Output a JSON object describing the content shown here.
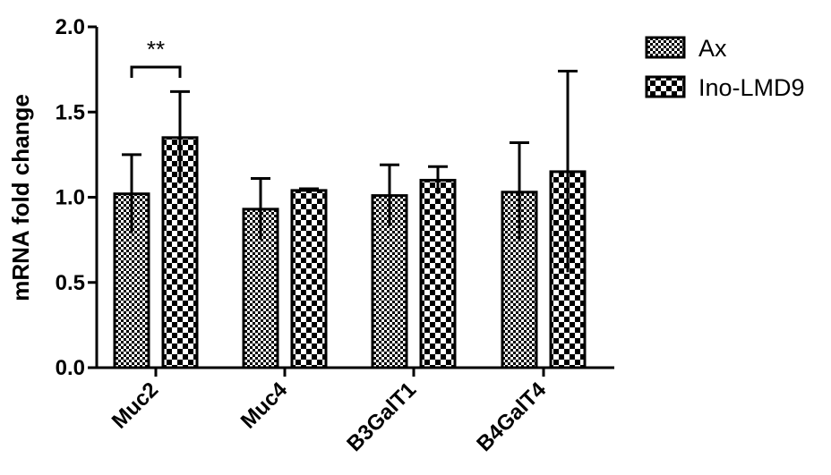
{
  "chart_data": {
    "type": "bar",
    "title": "",
    "xlabel": "",
    "ylabel": "mRNA fold change",
    "ylim": [
      0,
      2.0
    ],
    "yticks": [
      "0.0",
      "0.5",
      "1.0",
      "1.5",
      "2.0"
    ],
    "categories": [
      "Muc2",
      "Muc4",
      "B3GalT1",
      "B4GalT4"
    ],
    "series": [
      {
        "name": "Ax",
        "pattern": "fine-checker",
        "values": [
          1.02,
          0.93,
          1.01,
          1.03
        ],
        "errors": [
          0.23,
          0.18,
          0.18,
          0.29
        ]
      },
      {
        "name": "Ino-LMD9",
        "pattern": "coarse-checker",
        "values": [
          1.35,
          1.04,
          1.1,
          1.15
        ],
        "errors": [
          0.27,
          0.01,
          0.08,
          0.59
        ]
      }
    ],
    "annotations": [
      {
        "text": "**",
        "category": "Muc2"
      }
    ],
    "legend_position": "top-right",
    "colors": {
      "bar_dark": "#000000",
      "bar_light": "#ffffff"
    }
  }
}
